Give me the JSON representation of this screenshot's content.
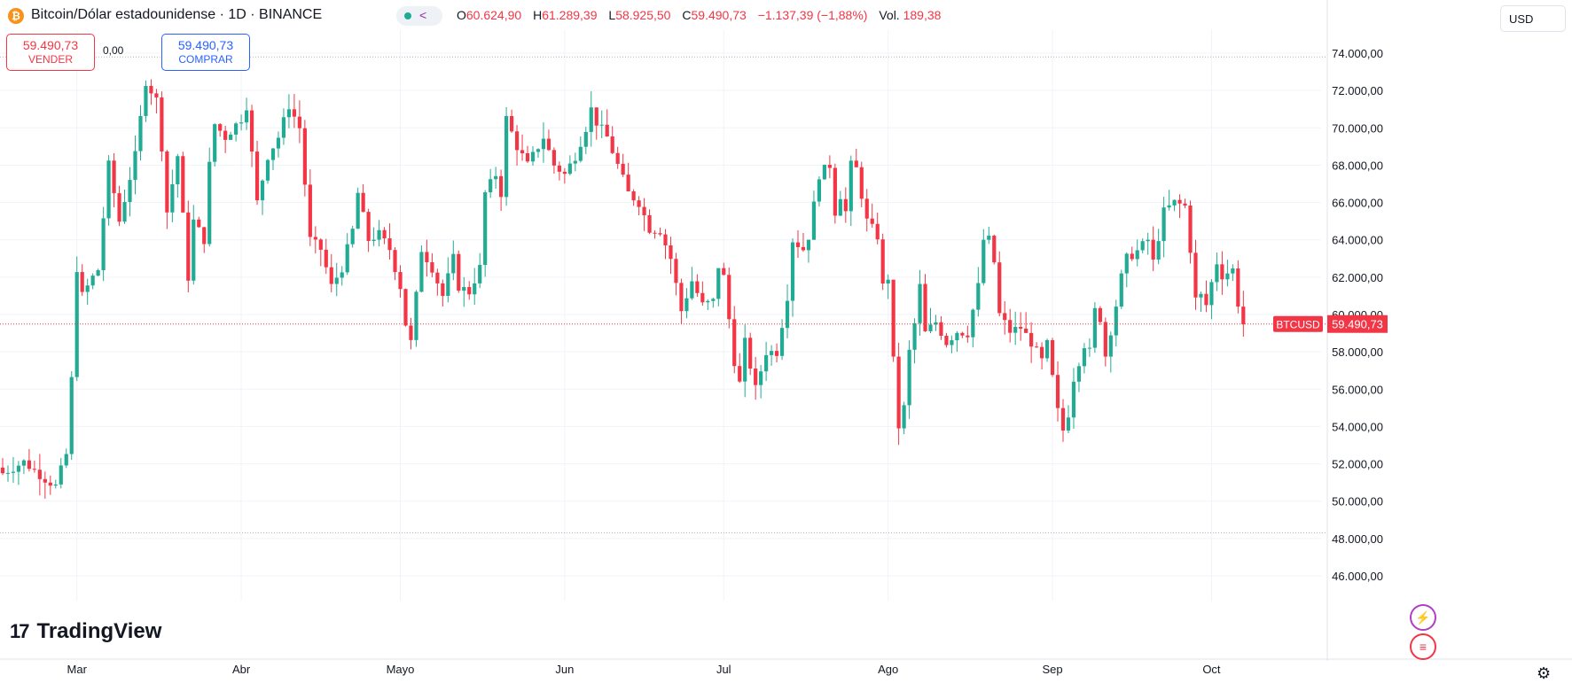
{
  "header": {
    "symbol_icon": "bitcoin-icon",
    "symbol_icon_glyph": "₿",
    "title": "Bitcoin/Dólar estadounidense · 1D · BINANCE",
    "share_icon": "share-icon",
    "ohlc": {
      "o_label": "O",
      "o_value": "60.624,90",
      "h_label": "H",
      "h_value": "61.289,39",
      "l_label": "L",
      "l_value": "58.925,50",
      "c_label": "C",
      "c_value": "59.490,73",
      "change": "−1.137,39 (−1,88%)",
      "vol_label": "Vol.",
      "vol_value": "189,38"
    }
  },
  "trade": {
    "sell_value": "59.490,73",
    "sell_label": "VENDER",
    "spread": "0,00",
    "buy_value": "59.490,73",
    "buy_label": "COMPRAR"
  },
  "currency": "USD",
  "logo": {
    "mark": "17",
    "text": "TradingView"
  },
  "price_tag": {
    "symbol": "BTCUSD",
    "value": "59.490,73"
  },
  "icons": {
    "event1": "lightning-icon",
    "event2": "us-flag-icon",
    "settings": "gear-icon"
  },
  "colors": {
    "up": "#22ab94",
    "down": "#f23645",
    "accent": "#2962ff",
    "grid": "#f0f3fa"
  },
  "chart_data": {
    "type": "candlestick",
    "y_axis": {
      "min": 45000,
      "max": 75000,
      "ticks": [
        46000,
        48000,
        50000,
        52000,
        54000,
        56000,
        58000,
        60000,
        62000,
        64000,
        66000,
        68000,
        70000,
        72000,
        74000
      ],
      "tick_labels": [
        "46.000,00",
        "48.000,00",
        "50.000,00",
        "52.000,00",
        "54.000,00",
        "56.000,00",
        "58.000,00",
        "60.000,00",
        "62.000,00",
        "64.000,00",
        "66.000,00",
        "68.000,00",
        "70.000,00",
        "72.000,00",
        "74.000,00"
      ]
    },
    "x_axis": {
      "start_day": 0,
      "end_day": 250,
      "month_ticks": [
        {
          "label": "Mar",
          "day": 14
        },
        {
          "label": "Abr",
          "day": 45
        },
        {
          "label": "Mayo",
          "day": 75
        },
        {
          "label": "Jun",
          "day": 106
        },
        {
          "label": "Jul",
          "day": 136
        },
        {
          "label": "Ago",
          "day": 167
        },
        {
          "label": "Sep",
          "day": 198
        },
        {
          "label": "Oct",
          "day": 228
        }
      ]
    },
    "last_price": 59490.73,
    "dotted_high": 73800,
    "dotted_low": 48300,
    "anchors": [
      [
        0,
        51500
      ],
      [
        4,
        52100
      ],
      [
        8,
        51200
      ],
      [
        10,
        50800
      ],
      [
        12,
        52500
      ],
      [
        13,
        56500
      ],
      [
        14,
        62500
      ],
      [
        15,
        61000
      ],
      [
        17,
        62000
      ],
      [
        18,
        62400
      ],
      [
        20,
        68000
      ],
      [
        22,
        65000
      ],
      [
        25,
        68500
      ],
      [
        27,
        72500
      ],
      [
        29,
        71500
      ],
      [
        30,
        69000
      ],
      [
        31,
        65500
      ],
      [
        33,
        68500
      ],
      [
        35,
        62000
      ],
      [
        36,
        65000
      ],
      [
        38,
        64000
      ],
      [
        39,
        68000
      ],
      [
        40,
        70200
      ],
      [
        42,
        69500
      ],
      [
        45,
        70500
      ],
      [
        46,
        71200
      ],
      [
        48,
        66000
      ],
      [
        50,
        68500
      ],
      [
        52,
        69500
      ],
      [
        54,
        71200
      ],
      [
        56,
        70000
      ],
      [
        58,
        64000
      ],
      [
        60,
        63500
      ],
      [
        62,
        61500
      ],
      [
        64,
        62500
      ],
      [
        66,
        64500
      ],
      [
        67,
        66500
      ],
      [
        69,
        64000
      ],
      [
        71,
        64300
      ],
      [
        73,
        63500
      ],
      [
        75,
        61500
      ],
      [
        76,
        59500
      ],
      [
        77,
        58500
      ],
      [
        78,
        61000
      ],
      [
        79,
        63500
      ],
      [
        81,
        62500
      ],
      [
        83,
        61000
      ],
      [
        85,
        63000
      ],
      [
        86,
        61500
      ],
      [
        88,
        61200
      ],
      [
        90,
        62500
      ],
      [
        91,
        66500
      ],
      [
        93,
        67500
      ],
      [
        94,
        66500
      ],
      [
        95,
        70500
      ],
      [
        97,
        69000
      ],
      [
        99,
        68000
      ],
      [
        100,
        68500
      ],
      [
        102,
        69500
      ],
      [
        104,
        68000
      ],
      [
        106,
        67500
      ],
      [
        108,
        68500
      ],
      [
        110,
        70000
      ],
      [
        111,
        71000
      ],
      [
        112,
        70300
      ],
      [
        114,
        69500
      ],
      [
        116,
        68000
      ],
      [
        118,
        66500
      ],
      [
        120,
        66000
      ],
      [
        122,
        64600
      ],
      [
        124,
        64500
      ],
      [
        126,
        63000
      ],
      [
        128,
        60200
      ],
      [
        130,
        61800
      ],
      [
        132,
        60500
      ],
      [
        134,
        60700
      ],
      [
        135,
        62600
      ],
      [
        136,
        62000
      ],
      [
        138,
        57500
      ],
      [
        139,
        56300
      ],
      [
        140,
        58500
      ],
      [
        142,
        56000
      ],
      [
        144,
        58000
      ],
      [
        146,
        58000
      ],
      [
        148,
        61000
      ],
      [
        149,
        64000
      ],
      [
        151,
        63500
      ],
      [
        152,
        64200
      ],
      [
        154,
        67500
      ],
      [
        156,
        68000
      ],
      [
        157,
        65500
      ],
      [
        158,
        66400
      ],
      [
        159,
        65500
      ],
      [
        160,
        68000
      ],
      [
        161,
        67800
      ],
      [
        163,
        65000
      ],
      [
        165,
        64200
      ],
      [
        166,
        61500
      ],
      [
        167,
        62000
      ],
      [
        168,
        57500
      ],
      [
        169,
        54000
      ],
      [
        170,
        55000
      ],
      [
        171,
        58000
      ],
      [
        172,
        59500
      ],
      [
        173,
        61500
      ],
      [
        174,
        59000
      ],
      [
        176,
        59600
      ],
      [
        178,
        58500
      ],
      [
        180,
        59100
      ],
      [
        182,
        59000
      ],
      [
        184,
        61500
      ],
      [
        185,
        64000
      ],
      [
        186,
        64000
      ],
      [
        187,
        62800
      ],
      [
        188,
        60000
      ],
      [
        190,
        59100
      ],
      [
        192,
        59300
      ],
      [
        194,
        58500
      ],
      [
        196,
        57500
      ],
      [
        197,
        58400
      ],
      [
        198,
        56600
      ],
      [
        199,
        54800
      ],
      [
        200,
        53800
      ],
      [
        201,
        54700
      ],
      [
        202,
        56600
      ],
      [
        204,
        58400
      ],
      [
        205,
        58000
      ],
      [
        206,
        60200
      ],
      [
        207,
        59800
      ],
      [
        208,
        57800
      ],
      [
        210,
        60500
      ],
      [
        211,
        62000
      ],
      [
        212,
        63000
      ],
      [
        214,
        63400
      ],
      [
        216,
        64000
      ],
      [
        217,
        62800
      ],
      [
        219,
        65500
      ],
      [
        221,
        66000
      ],
      [
        223,
        65800
      ],
      [
        224,
        63500
      ],
      [
        225,
        60800
      ],
      [
        226,
        61000
      ],
      [
        227,
        60500
      ],
      [
        228,
        61700
      ],
      [
        229,
        62800
      ],
      [
        230,
        62100
      ],
      [
        232,
        62400
      ],
      [
        233,
        60600
      ],
      [
        234,
        59490
      ]
    ]
  }
}
